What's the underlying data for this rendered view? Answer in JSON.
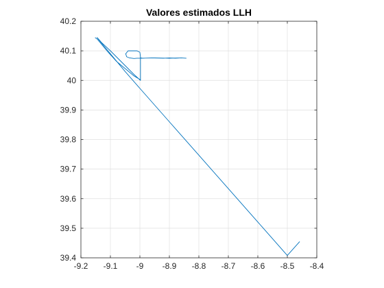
{
  "chart_data": {
    "type": "line",
    "title": "Valores estimados LLH",
    "xlabel": "",
    "ylabel": "",
    "xlim": [
      -9.2,
      -8.4
    ],
    "ylim": [
      39.4,
      40.2
    ],
    "xticks": [
      -9.2,
      -9.1,
      -9.0,
      -8.9,
      -8.8,
      -8.7,
      -8.6,
      -8.5,
      -8.4
    ],
    "xtick_labels": [
      "-9.2",
      "-9.1",
      "-9",
      "-8.9",
      "-8.8",
      "-8.7",
      "-8.6",
      "-8.5",
      "-8.4"
    ],
    "yticks": [
      39.4,
      39.5,
      39.6,
      39.7,
      39.8,
      39.9,
      40.0,
      40.1,
      40.2
    ],
    "ytick_labels": [
      "39.4",
      "39.5",
      "39.6",
      "39.7",
      "39.8",
      "39.9",
      "40",
      "40.1",
      "40.2"
    ],
    "grid": true,
    "line_color": "#0072BD",
    "series": [
      {
        "x": [
          -9.152,
          -9.145,
          -9.13,
          -9.11,
          -9.08,
          -9.05,
          -9.02,
          -8.998,
          -8.998,
          -8.998,
          -8.998,
          -9.0,
          -9.01,
          -9.025,
          -9.04,
          -9.048,
          -9.045,
          -9.035,
          -9.02,
          -9.01,
          -9.0,
          -8.998,
          -8.99,
          -8.96,
          -8.92,
          -8.9,
          -8.88,
          -8.86,
          -8.843,
          -8.86,
          -8.9,
          -8.95,
          -8.998,
          -8.998,
          -9.02,
          -9.06,
          -9.1,
          -9.13,
          -9.145,
          -9.14,
          -9.1,
          -9.05,
          -9.0,
          -8.9,
          -8.8,
          -8.7,
          -8.6,
          -8.5,
          -8.458
        ],
        "y": [
          40.145,
          40.14,
          40.122,
          40.098,
          40.065,
          40.04,
          40.015,
          40.002,
          40.03,
          40.05,
          40.08,
          40.095,
          40.1,
          40.1,
          40.1,
          40.09,
          40.08,
          40.076,
          40.074,
          40.075,
          40.075,
          40.076,
          40.075,
          40.076,
          40.075,
          40.076,
          40.075,
          40.076,
          40.075,
          40.076,
          40.075,
          40.076,
          40.075,
          40.0,
          40.02,
          40.06,
          40.1,
          40.128,
          40.145,
          40.138,
          40.09,
          40.03,
          39.973,
          39.86,
          39.747,
          39.634,
          39.521,
          39.408,
          39.455
        ]
      }
    ]
  }
}
